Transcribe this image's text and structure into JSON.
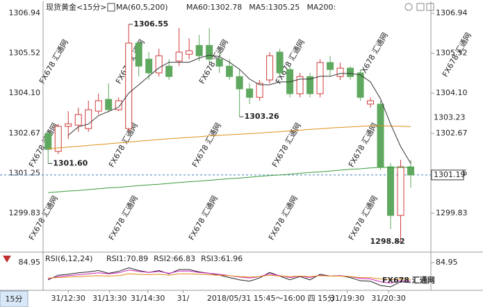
{
  "chart_data": {
    "type": "candlestick",
    "title": "现货黄金<15分>",
    "indicator_label": "MA(60,5,200)",
    "cursor_label": "2018/05/31 15:45～16:00 四 15分",
    "period_tab": "15分",
    "watermark": "FX678 汇通网",
    "logo": "FX678 汇通网",
    "up_color": "#d03a3a",
    "down_color": "#5fa85f",
    "candles": {
      "open": [
        1302.67,
        1302.03,
        1302.92,
        1302.96,
        1302.84,
        1303.46,
        1303.88,
        1303.51,
        1302.84,
        1305.88,
        1305.31,
        1304.82,
        1305.06,
        1305.24,
        1305.48,
        1305.8,
        1305.8,
        1305.31,
        1305.06,
        1304.69,
        1304.25,
        1303.95,
        1304.57,
        1305.56,
        1304.94,
        1304.08,
        1304.69,
        1304.08,
        1305.19,
        1304.69,
        1304.99,
        1304.82,
        1303.71,
        1303.71,
        1301.48,
        1299.75,
        1301.48
      ],
      "high": [
        1302.77,
        1303.01,
        1303.46,
        1303.58,
        1303.83,
        1304.08,
        1304.45,
        1303.95,
        1306.55,
        1305.93,
        1305.56,
        1305.68,
        1305.31,
        1306.42,
        1306.05,
        1306.17,
        1306.42,
        1305.56,
        1305.31,
        1304.94,
        1304.45,
        1304.57,
        1305.56,
        1305.68,
        1305.06,
        1304.82,
        1304.82,
        1305.31,
        1305.43,
        1305.19,
        1305.06,
        1304.94,
        1303.95,
        1303.83,
        1301.61,
        1301.73,
        1301.73
      ],
      "low": [
        1301.6,
        1301.93,
        1302.47,
        1302.72,
        1302.72,
        1303.34,
        1303.41,
        1303.46,
        1302.72,
        1304.69,
        1304.57,
        1304.69,
        1304.57,
        1305.06,
        1305.31,
        1305.24,
        1305.19,
        1304.82,
        1304.57,
        1303.26,
        1303.71,
        1303.83,
        1304.45,
        1304.69,
        1303.95,
        1303.95,
        1303.95,
        1303.95,
        1304.69,
        1304.57,
        1304.57,
        1303.83,
        1303.58,
        1301.36,
        1299.26,
        1298.82,
        1300.74
      ],
      "close": [
        1302.1,
        1302.92,
        1303.01,
        1303.34,
        1303.51,
        1303.83,
        1303.51,
        1303.83,
        1305.88,
        1305.06,
        1304.82,
        1305.43,
        1304.69,
        1305.56,
        1305.61,
        1305.43,
        1305.31,
        1305.06,
        1304.69,
        1304.25,
        1303.95,
        1304.45,
        1305.43,
        1304.82,
        1304.08,
        1304.69,
        1304.08,
        1305.19,
        1304.94,
        1304.99,
        1304.69,
        1303.95,
        1303.83,
        1301.48,
        1299.75,
        1301.48,
        1301.19
      ]
    },
    "series": [
      {
        "name": "MA60:1302.78",
        "color": "#e0901a",
        "values": [
          1302.12,
          1302.15,
          1302.18,
          1302.21,
          1302.24,
          1302.27,
          1302.3,
          1302.33,
          1302.36,
          1302.39,
          1302.42,
          1302.45,
          1302.48,
          1302.5,
          1302.53,
          1302.55,
          1302.58,
          1302.6,
          1302.62,
          1302.64,
          1302.66,
          1302.68,
          1302.71,
          1302.73,
          1302.76,
          1302.78,
          1302.81,
          1302.83,
          1302.86,
          1302.88,
          1302.9,
          1302.92,
          1302.94,
          1302.94,
          1302.93,
          1302.92,
          1302.91
        ]
      },
      {
        "name": "MA5:1305.25",
        "color": "#333333",
        "values": [
          null,
          null,
          1302.6,
          1302.9,
          1303.0,
          1303.3,
          1303.45,
          1303.6,
          1304.1,
          1304.4,
          1304.7,
          1305.0,
          1305.2,
          1305.2,
          1305.2,
          1305.35,
          1305.45,
          1305.4,
          1305.2,
          1304.95,
          1304.6,
          1304.4,
          1304.4,
          1304.5,
          1304.5,
          1304.6,
          1304.6,
          1304.7,
          1304.7,
          1304.8,
          1304.8,
          1304.75,
          1304.5,
          1303.9,
          1303.0,
          1302.2,
          1301.6
        ]
      },
      {
        "name": "MA200:",
        "color": "#3a9a3a",
        "values": [
          1300.56,
          1300.59,
          1300.62,
          1300.64,
          1300.67,
          1300.7,
          1300.73,
          1300.75,
          1300.78,
          1300.81,
          1300.84,
          1300.86,
          1300.89,
          1300.92,
          1300.95,
          1300.97,
          1301.0,
          1301.03,
          1301.06,
          1301.08,
          1301.11,
          1301.14,
          1301.17,
          1301.19,
          1301.22,
          1301.25,
          1301.28,
          1301.3,
          1301.33,
          1301.36,
          1301.39,
          1301.41,
          1301.44,
          1301.46,
          1301.46,
          1301.46,
          1301.46
        ]
      }
    ],
    "xlim": [
      -0.5,
      38
    ],
    "xticks": [
      {
        "value": 2,
        "label": "31/12:30"
      },
      {
        "value": 6.1,
        "label": "31/13:30"
      },
      {
        "value": 9.9,
        "label": "31/14:30"
      },
      {
        "value": 13.4,
        "label": "31/"
      },
      {
        "value": 29.7,
        "label": "31/19:30"
      },
      {
        "value": 33.8,
        "label": "31/20:30"
      }
    ],
    "ylim": [
      1298.47,
      1307.29
    ],
    "yticks": [
      1306.94,
      1305.52,
      {
        "value": 1304.1,
        "label": "1304.10"
      },
      1302.67,
      1301.25,
      1299.83
    ],
    "ma60_last": 1303.23,
    "price_line": 1301.19,
    "annotations": [
      {
        "value": 1306.55,
        "label": "1306.55",
        "color": "#c03030"
      },
      {
        "value": 1303.26,
        "label": "1303.26",
        "color": "#3a8a3a"
      },
      {
        "value": 1301.6,
        "label": "1301.60",
        "color": "#3a8a3a"
      },
      {
        "value": 1298.82,
        "label": "1298.82",
        "color": "#3a8a3a"
      }
    ],
    "rsi": {
      "title": "RSI(6,12,24)",
      "ylim": [
        30,
        100
      ],
      "yticks": [
        84.95
      ],
      "series": [
        {
          "name": "RSI1:70.89",
          "color": "#222222",
          "values": [
            48,
            58,
            60,
            63,
            65,
            68,
            62,
            66,
            74,
            68,
            64,
            68,
            61,
            70,
            70,
            65,
            62,
            58,
            53,
            48,
            45,
            52,
            64,
            56,
            48,
            55,
            48,
            60,
            56,
            57,
            53,
            46,
            45,
            36,
            33,
            44,
            42
          ]
        },
        {
          "name": "RSI2:66.83",
          "color": "#d020c0",
          "values": [
            50,
            55,
            57,
            59,
            61,
            63,
            61,
            63,
            69,
            66,
            64,
            66,
            62,
            67,
            67,
            64,
            62,
            60,
            57,
            54,
            52,
            55,
            61,
            57,
            53,
            56,
            53,
            58,
            56,
            57,
            55,
            51,
            50,
            44,
            41,
            46,
            45
          ]
        },
        {
          "name": "RSI3:61.96",
          "color": "#e08a10",
          "values": [
            52,
            53,
            54,
            55,
            56,
            57,
            56,
            57,
            61,
            60,
            59,
            60,
            58,
            61,
            61,
            60,
            59,
            58,
            57,
            55,
            54,
            55,
            58,
            56,
            55,
            56,
            55,
            57,
            56,
            56,
            55,
            53,
            53,
            50,
            48,
            50,
            49
          ]
        }
      ]
    }
  }
}
